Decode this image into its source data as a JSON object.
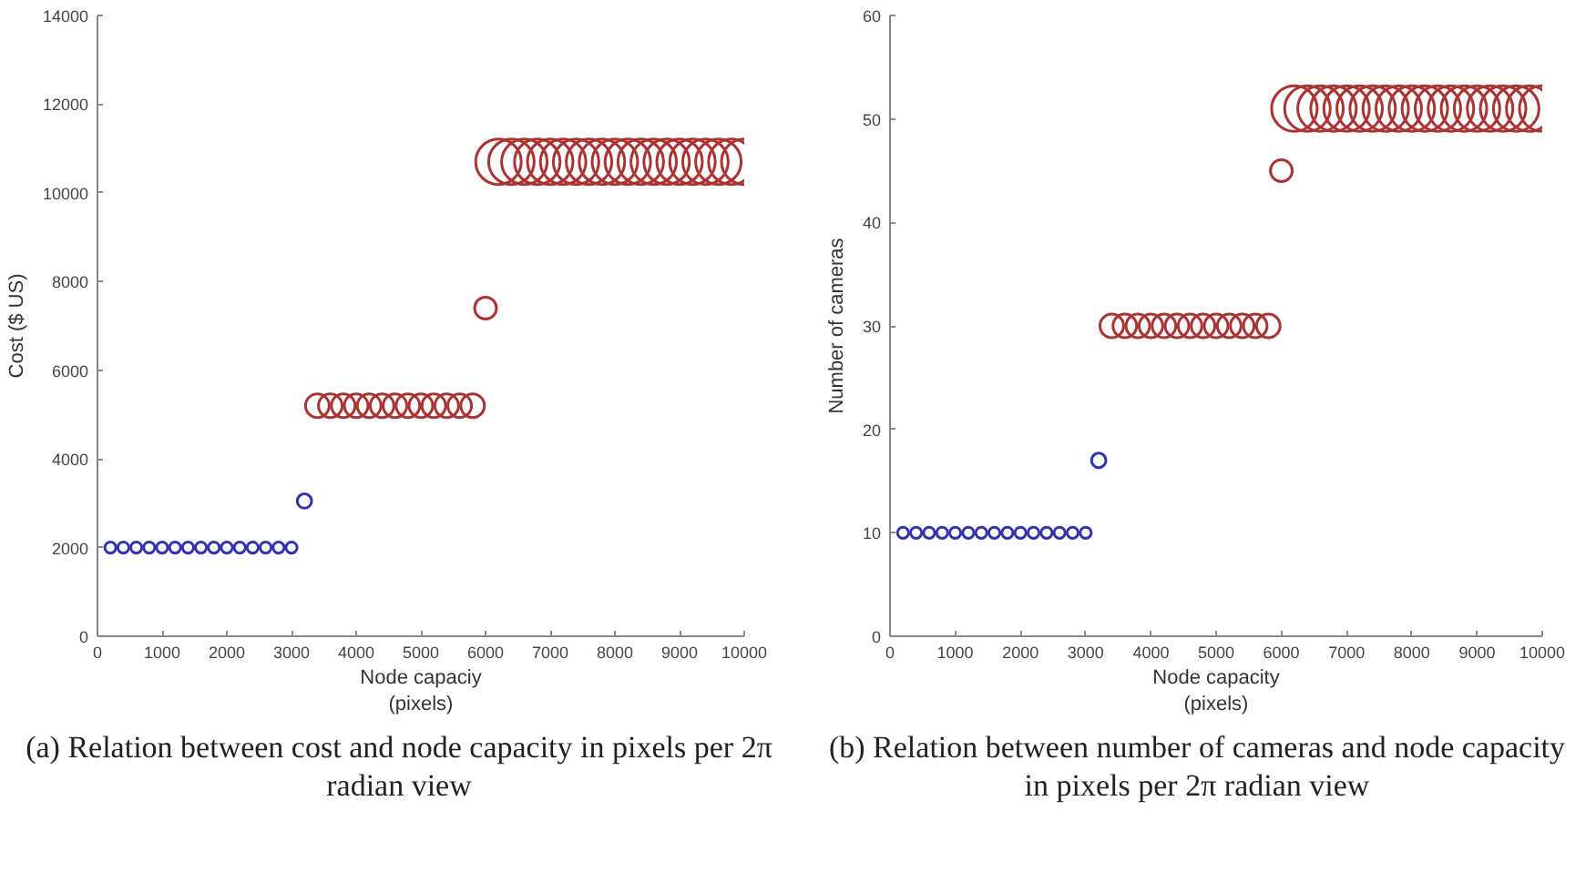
{
  "chart_data": [
    {
      "type": "bubble",
      "xlabel": "Node capaciy\n(pixels)",
      "ylabel": "Cost ($ US)",
      "xlim": [
        0,
        10000
      ],
      "xticks": [
        0,
        1000,
        2000,
        3000,
        4000,
        5000,
        6000,
        7000,
        8000,
        9000,
        10000
      ],
      "ylim": [
        0,
        14000
      ],
      "yticks": [
        0,
        2000,
        4000,
        6000,
        8000,
        10000,
        12000,
        14000
      ],
      "grid": false,
      "marker": "circle",
      "annotations": [
        "(a) Relation between cost and node capacity in pixels per 2π radian view"
      ],
      "series": [
        {
          "color": "#3333aa",
          "x": [
            200,
            400,
            600,
            800,
            1000,
            1200,
            1400,
            1600,
            1800,
            2000,
            2200,
            2400,
            2600,
            2800,
            3000,
            3200
          ],
          "values": [
            2000,
            2000,
            2000,
            2000,
            2000,
            2000,
            2000,
            2000,
            2000,
            2000,
            2000,
            2000,
            2000,
            2000,
            2000,
            3050
          ],
          "sizes": [
            0.06,
            0.06,
            0.06,
            0.06,
            0.06,
            0.06,
            0.06,
            0.06,
            0.06,
            0.06,
            0.06,
            0.06,
            0.06,
            0.06,
            0.06,
            0.1
          ]
        },
        {
          "color": "#aa3333",
          "x": [
            3400,
            3600,
            3800,
            4000,
            4200,
            4400,
            4600,
            4800,
            5000,
            5200,
            5400,
            5600,
            5800,
            6000,
            6200,
            6400,
            6600,
            6800,
            7000,
            7200,
            7400,
            7600,
            7800,
            8000,
            8200,
            8400,
            8600,
            8800,
            9000,
            9200,
            9400,
            9600,
            9800,
            10000
          ],
          "values": [
            5200,
            5200,
            5200,
            5200,
            5200,
            5200,
            5200,
            5200,
            5200,
            5200,
            5200,
            5200,
            5200,
            7400,
            10700,
            10700,
            10700,
            10700,
            10700,
            10700,
            10700,
            10700,
            10700,
            10700,
            10700,
            10700,
            10700,
            10700,
            10700,
            10700,
            10700,
            10700,
            10700,
            10700
          ],
          "sizes": [
            0.27,
            0.27,
            0.27,
            0.27,
            0.27,
            0.27,
            0.27,
            0.27,
            0.27,
            0.27,
            0.27,
            0.27,
            0.27,
            0.23,
            1,
            1,
            1,
            1,
            1,
            1,
            1,
            1,
            1,
            1,
            1,
            1,
            1,
            1,
            1,
            1,
            1,
            1,
            1,
            1
          ]
        }
      ]
    },
    {
      "type": "bubble",
      "xlabel": "Node capacity\n(pixels)",
      "ylabel": "Number of cameras",
      "xlim": [
        0,
        10000
      ],
      "xticks": [
        0,
        1000,
        2000,
        3000,
        4000,
        5000,
        6000,
        7000,
        8000,
        9000,
        10000
      ],
      "ylim": [
        0,
        60
      ],
      "yticks": [
        0,
        10,
        20,
        30,
        40,
        50,
        60
      ],
      "grid": false,
      "marker": "circle",
      "annotations": [
        "(b) Relation between number of cameras and node capacity in pixels per 2π radian view"
      ],
      "series": [
        {
          "color": "#3333aa",
          "x": [
            200,
            400,
            600,
            800,
            1000,
            1200,
            1400,
            1600,
            1800,
            2000,
            2200,
            2400,
            2600,
            2800,
            3000,
            3200
          ],
          "values": [
            10,
            10,
            10,
            10,
            10,
            10,
            10,
            10,
            10,
            10,
            10,
            10,
            10,
            10,
            10,
            17
          ],
          "sizes": [
            0.06,
            0.06,
            0.06,
            0.06,
            0.06,
            0.06,
            0.06,
            0.06,
            0.06,
            0.06,
            0.06,
            0.06,
            0.06,
            0.06,
            0.06,
            0.1
          ]
        },
        {
          "color": "#aa3333",
          "x": [
            3400,
            3600,
            3800,
            4000,
            4200,
            4400,
            4600,
            4800,
            5000,
            5200,
            5400,
            5600,
            5800,
            6000,
            6200,
            6400,
            6600,
            6800,
            7000,
            7200,
            7400,
            7600,
            7800,
            8000,
            8200,
            8400,
            8600,
            8800,
            9000,
            9200,
            9400,
            9600,
            9800,
            10000
          ],
          "values": [
            30,
            30,
            30,
            30,
            30,
            30,
            30,
            30,
            30,
            30,
            30,
            30,
            30,
            45,
            51,
            51,
            51,
            51,
            51,
            51,
            51,
            51,
            51,
            51,
            51,
            51,
            51,
            51,
            51,
            51,
            51,
            51,
            51,
            51
          ],
          "sizes": [
            0.27,
            0.27,
            0.27,
            0.27,
            0.27,
            0.27,
            0.27,
            0.27,
            0.27,
            0.27,
            0.27,
            0.27,
            0.27,
            0.23,
            1,
            1,
            1,
            1,
            1,
            1,
            1,
            1,
            1,
            1,
            1,
            1,
            1,
            1,
            1,
            1,
            1,
            1,
            1,
            1
          ]
        }
      ]
    }
  ]
}
